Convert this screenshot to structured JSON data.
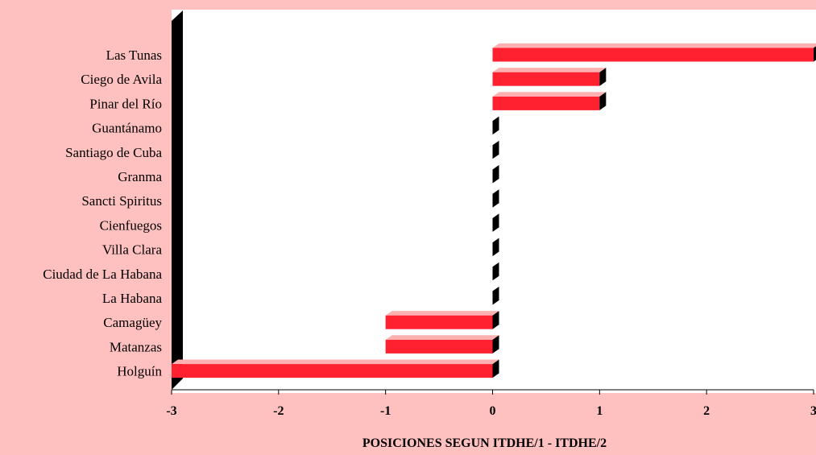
{
  "chart_data": {
    "type": "bar",
    "orientation": "horizontal",
    "style": "3d",
    "title": "",
    "xlabel": "POSICIONES SEGUN ITDHE/1 - ITDHE/2",
    "ylabel": "",
    "xlim": [
      -3,
      3
    ],
    "x_ticks": [
      "-3",
      "-2",
      "-1",
      "0",
      "1",
      "2",
      "3"
    ],
    "grid": false,
    "categories": [
      "Las Tunas",
      "Ciego de Avila",
      "Pinar del Río",
      "Guantánamo",
      "Santiago de Cuba",
      "Granma",
      "Sancti Spiritus",
      "Cienfuegos",
      "Villa Clara",
      "Ciudad de La Habana",
      "La Habana",
      "Camagüey",
      "Matanzas",
      "Holguín"
    ],
    "values": [
      3,
      1,
      1,
      0,
      0,
      0,
      0,
      0,
      0,
      0,
      0,
      -1,
      -1,
      -3
    ],
    "colors": {
      "bar_front": "#ff2030",
      "bar_top": "#ffb0b0",
      "bar_side": "#000000",
      "plot_background": "#ffffff",
      "page_background": "#ffc0c0"
    }
  }
}
